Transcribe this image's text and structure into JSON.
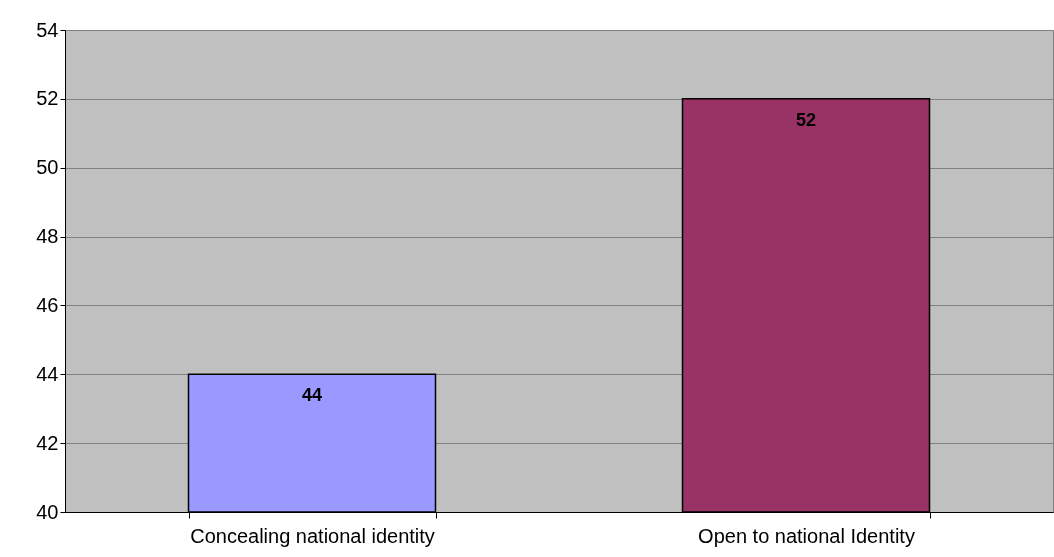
{
  "chart_data": {
    "type": "bar",
    "categories": [
      "Concealing national identity",
      "Open to national Identity"
    ],
    "values": [
      44,
      52
    ],
    "colors": [
      "#9999ff",
      "#993366"
    ],
    "ylim": [
      40,
      54
    ],
    "yticks": [
      40,
      42,
      44,
      46,
      48,
      50,
      52,
      54
    ],
    "grid": "y",
    "data_labels": true
  }
}
